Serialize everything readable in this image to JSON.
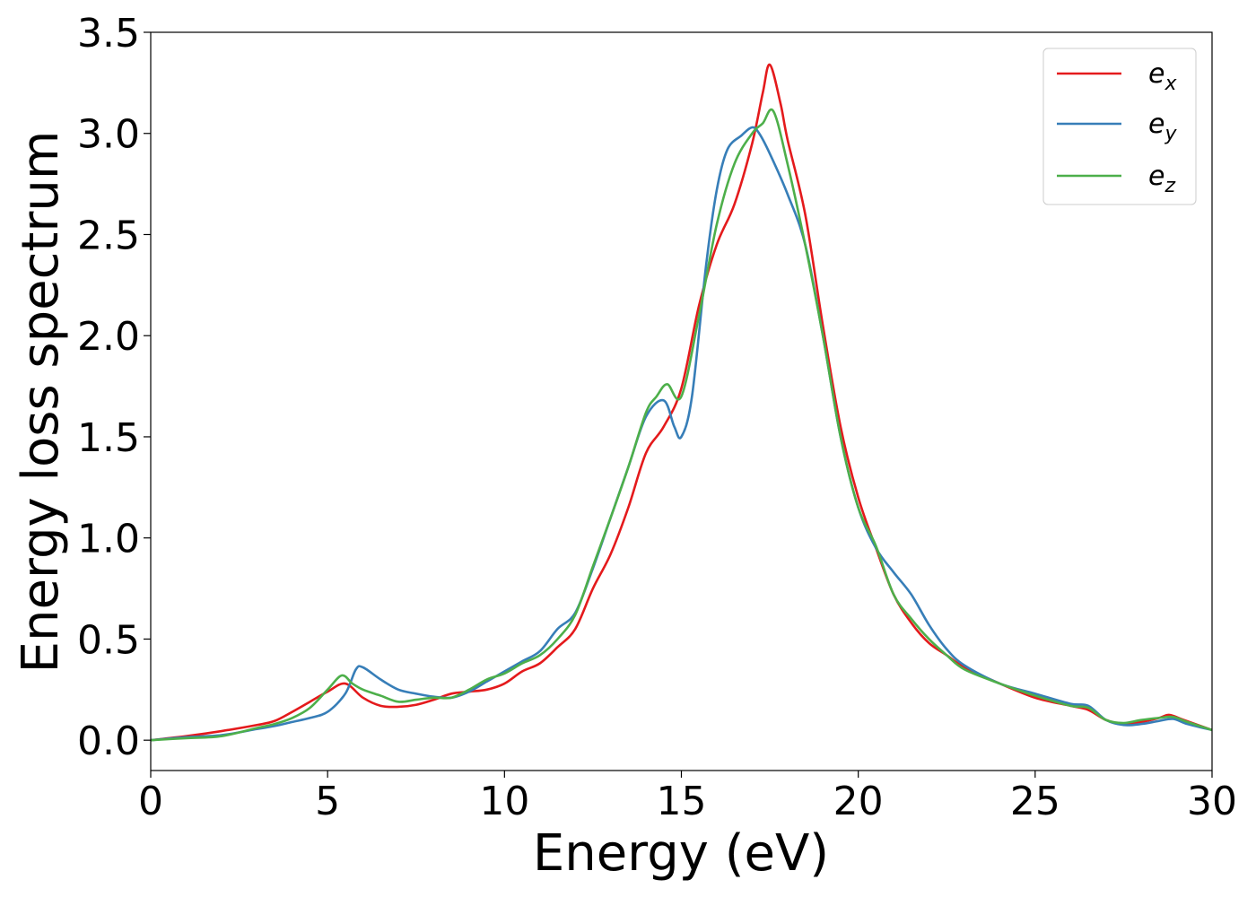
{
  "chart_data": {
    "type": "line",
    "xlabel": "Energy (eV)",
    "ylabel": "Energy loss spectrum",
    "xlim": [
      0,
      30
    ],
    "ylim": [
      -0.15,
      3.5
    ],
    "xticks": [
      0,
      5,
      10,
      15,
      20,
      25,
      30
    ],
    "xtick_labels": [
      "0",
      "5",
      "10",
      "15",
      "20",
      "25",
      "30"
    ],
    "yticks": [
      0.0,
      0.5,
      1.0,
      1.5,
      2.0,
      2.5,
      3.0,
      3.5
    ],
    "ytick_labels": [
      "0.0",
      "0.5",
      "1.0",
      "1.5",
      "2.0",
      "2.5",
      "3.0",
      "3.5"
    ],
    "grid": false,
    "legend_position": "top-right",
    "series": [
      {
        "name": "e_x",
        "label_main": "e",
        "label_sub": "x",
        "color": "#e41a1c",
        "points": [
          [
            0,
            0.0
          ],
          [
            1,
            0.02
          ],
          [
            2,
            0.045
          ],
          [
            3,
            0.075
          ],
          [
            3.5,
            0.095
          ],
          [
            4,
            0.14
          ],
          [
            4.5,
            0.19
          ],
          [
            5,
            0.24
          ],
          [
            5.5,
            0.28
          ],
          [
            6,
            0.21
          ],
          [
            6.5,
            0.17
          ],
          [
            7,
            0.165
          ],
          [
            7.5,
            0.175
          ],
          [
            8,
            0.2
          ],
          [
            8.5,
            0.23
          ],
          [
            9,
            0.24
          ],
          [
            9.5,
            0.25
          ],
          [
            10,
            0.28
          ],
          [
            10.5,
            0.34
          ],
          [
            11,
            0.38
          ],
          [
            11.5,
            0.46
          ],
          [
            12,
            0.55
          ],
          [
            12.5,
            0.75
          ],
          [
            13,
            0.92
          ],
          [
            13.5,
            1.15
          ],
          [
            14,
            1.42
          ],
          [
            14.5,
            1.55
          ],
          [
            15,
            1.74
          ],
          [
            15.5,
            2.15
          ],
          [
            16,
            2.45
          ],
          [
            16.5,
            2.65
          ],
          [
            17,
            2.95
          ],
          [
            17.3,
            3.2
          ],
          [
            17.5,
            3.34
          ],
          [
            17.8,
            3.15
          ],
          [
            18,
            2.97
          ],
          [
            18.5,
            2.6
          ],
          [
            19,
            2.05
          ],
          [
            19.5,
            1.55
          ],
          [
            20,
            1.2
          ],
          [
            20.5,
            0.95
          ],
          [
            21,
            0.72
          ],
          [
            21.5,
            0.58
          ],
          [
            22,
            0.48
          ],
          [
            22.5,
            0.42
          ],
          [
            23,
            0.36
          ],
          [
            24,
            0.28
          ],
          [
            25,
            0.21
          ],
          [
            26,
            0.17
          ],
          [
            26.5,
            0.15
          ],
          [
            27,
            0.1
          ],
          [
            27.5,
            0.08
          ],
          [
            28,
            0.09
          ],
          [
            28.5,
            0.11
          ],
          [
            28.8,
            0.125
          ],
          [
            29.2,
            0.1
          ],
          [
            30,
            0.05
          ]
        ]
      },
      {
        "name": "e_y",
        "label_main": "e",
        "label_sub": "y",
        "color": "#377eb8",
        "points": [
          [
            0,
            0.0
          ],
          [
            1,
            0.015
          ],
          [
            2,
            0.025
          ],
          [
            3,
            0.055
          ],
          [
            3.5,
            0.07
          ],
          [
            4,
            0.09
          ],
          [
            4.5,
            0.11
          ],
          [
            5,
            0.14
          ],
          [
            5.5,
            0.23
          ],
          [
            5.8,
            0.35
          ],
          [
            6,
            0.36
          ],
          [
            6.5,
            0.3
          ],
          [
            7,
            0.25
          ],
          [
            7.5,
            0.23
          ],
          [
            8,
            0.215
          ],
          [
            8.5,
            0.21
          ],
          [
            9,
            0.24
          ],
          [
            9.5,
            0.29
          ],
          [
            10,
            0.34
          ],
          [
            10.5,
            0.39
          ],
          [
            11,
            0.44
          ],
          [
            11.5,
            0.55
          ],
          [
            12,
            0.63
          ],
          [
            12.5,
            0.85
          ],
          [
            13,
            1.1
          ],
          [
            13.5,
            1.35
          ],
          [
            14,
            1.6
          ],
          [
            14.5,
            1.68
          ],
          [
            14.8,
            1.55
          ],
          [
            15,
            1.5
          ],
          [
            15.3,
            1.7
          ],
          [
            15.7,
            2.35
          ],
          [
            16,
            2.72
          ],
          [
            16.3,
            2.92
          ],
          [
            16.7,
            2.99
          ],
          [
            17,
            3.03
          ],
          [
            17.2,
            3.0
          ],
          [
            17.5,
            2.9
          ],
          [
            18,
            2.7
          ],
          [
            18.5,
            2.45
          ],
          [
            19,
            2.0
          ],
          [
            19.5,
            1.5
          ],
          [
            20,
            1.15
          ],
          [
            20.5,
            0.95
          ],
          [
            21,
            0.83
          ],
          [
            21.5,
            0.72
          ],
          [
            22,
            0.57
          ],
          [
            22.5,
            0.45
          ],
          [
            23,
            0.37
          ],
          [
            24,
            0.28
          ],
          [
            25,
            0.23
          ],
          [
            26,
            0.18
          ],
          [
            26.5,
            0.17
          ],
          [
            27,
            0.1
          ],
          [
            27.5,
            0.075
          ],
          [
            28,
            0.08
          ],
          [
            28.5,
            0.095
          ],
          [
            28.9,
            0.105
          ],
          [
            29.3,
            0.08
          ],
          [
            30,
            0.05
          ]
        ]
      },
      {
        "name": "e_z",
        "label_main": "e",
        "label_sub": "z",
        "color": "#4daf4a",
        "points": [
          [
            0,
            0.0
          ],
          [
            1,
            0.01
          ],
          [
            2,
            0.02
          ],
          [
            3,
            0.06
          ],
          [
            3.5,
            0.08
          ],
          [
            4,
            0.11
          ],
          [
            4.5,
            0.16
          ],
          [
            5,
            0.25
          ],
          [
            5.4,
            0.32
          ],
          [
            5.7,
            0.28
          ],
          [
            6,
            0.25
          ],
          [
            6.5,
            0.22
          ],
          [
            7,
            0.19
          ],
          [
            7.5,
            0.2
          ],
          [
            8,
            0.21
          ],
          [
            8.5,
            0.21
          ],
          [
            9,
            0.25
          ],
          [
            9.5,
            0.3
          ],
          [
            10,
            0.33
          ],
          [
            10.5,
            0.38
          ],
          [
            11,
            0.42
          ],
          [
            11.5,
            0.5
          ],
          [
            12,
            0.62
          ],
          [
            12.5,
            0.86
          ],
          [
            13,
            1.1
          ],
          [
            13.5,
            1.35
          ],
          [
            14,
            1.62
          ],
          [
            14.3,
            1.7
          ],
          [
            14.6,
            1.76
          ],
          [
            15,
            1.7
          ],
          [
            15.5,
            2.1
          ],
          [
            16,
            2.55
          ],
          [
            16.5,
            2.85
          ],
          [
            17,
            3.0
          ],
          [
            17.3,
            3.05
          ],
          [
            17.6,
            3.11
          ],
          [
            18,
            2.85
          ],
          [
            18.5,
            2.45
          ],
          [
            19,
            2.0
          ],
          [
            19.5,
            1.5
          ],
          [
            20,
            1.15
          ],
          [
            20.5,
            0.96
          ],
          [
            21,
            0.72
          ],
          [
            21.5,
            0.6
          ],
          [
            22,
            0.5
          ],
          [
            22.5,
            0.42
          ],
          [
            23,
            0.35
          ],
          [
            24,
            0.28
          ],
          [
            25,
            0.22
          ],
          [
            26,
            0.17
          ],
          [
            26.5,
            0.16
          ],
          [
            27,
            0.1
          ],
          [
            27.5,
            0.085
          ],
          [
            28,
            0.1
          ],
          [
            28.5,
            0.11
          ],
          [
            28.9,
            0.115
          ],
          [
            29.3,
            0.09
          ],
          [
            30,
            0.05
          ]
        ]
      }
    ]
  }
}
